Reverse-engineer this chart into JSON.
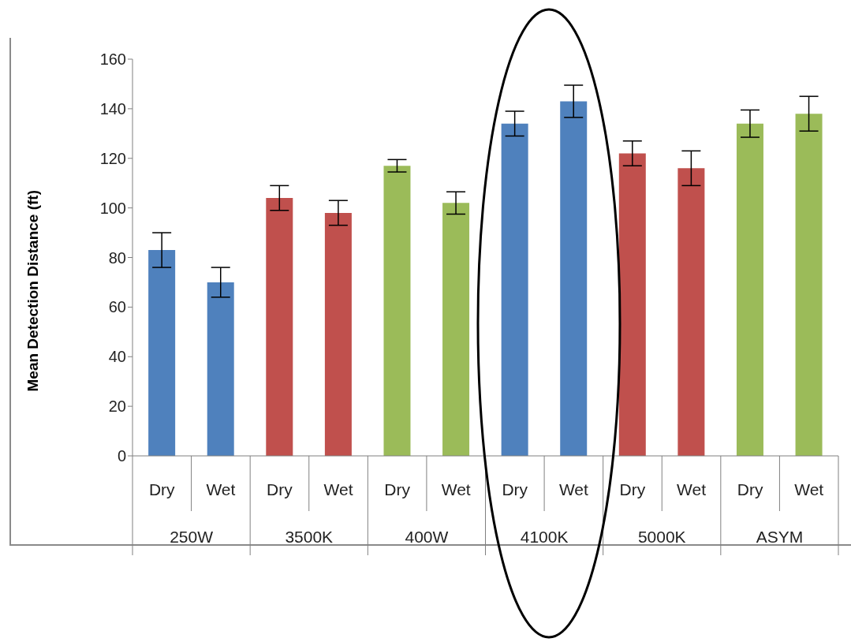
{
  "chart_data": {
    "type": "bar",
    "ylabel": "Mean Detection Distance  (ft)",
    "categories": [
      "Dry",
      "Wet",
      "Dry",
      "Wet",
      "Dry",
      "Wet",
      "Dry",
      "Wet",
      "Dry",
      "Wet",
      "Dry",
      "Wet"
    ],
    "values": [
      83,
      70,
      104,
      98,
      117,
      102,
      134,
      143,
      122,
      116,
      134,
      138
    ],
    "errors": [
      7,
      6,
      5,
      5,
      2.5,
      4.5,
      5,
      6.5,
      5,
      7,
      5.5,
      7
    ],
    "colors": [
      "#4f81bd",
      "#4f81bd",
      "#c0504d",
      "#c0504d",
      "#9bbb59",
      "#9bbb59",
      "#4f81bd",
      "#4f81bd",
      "#c0504d",
      "#c0504d",
      "#9bbb59",
      "#9bbb59"
    ],
    "annotations": [
      "250W",
      "3500K",
      "400W",
      "4100K",
      "5000K",
      "ASYM"
    ],
    "ylim": [
      0,
      160
    ],
    "yticks": [
      0,
      20,
      40,
      60,
      80,
      100,
      120,
      140,
      160
    ],
    "grid": false,
    "legend": false
  }
}
